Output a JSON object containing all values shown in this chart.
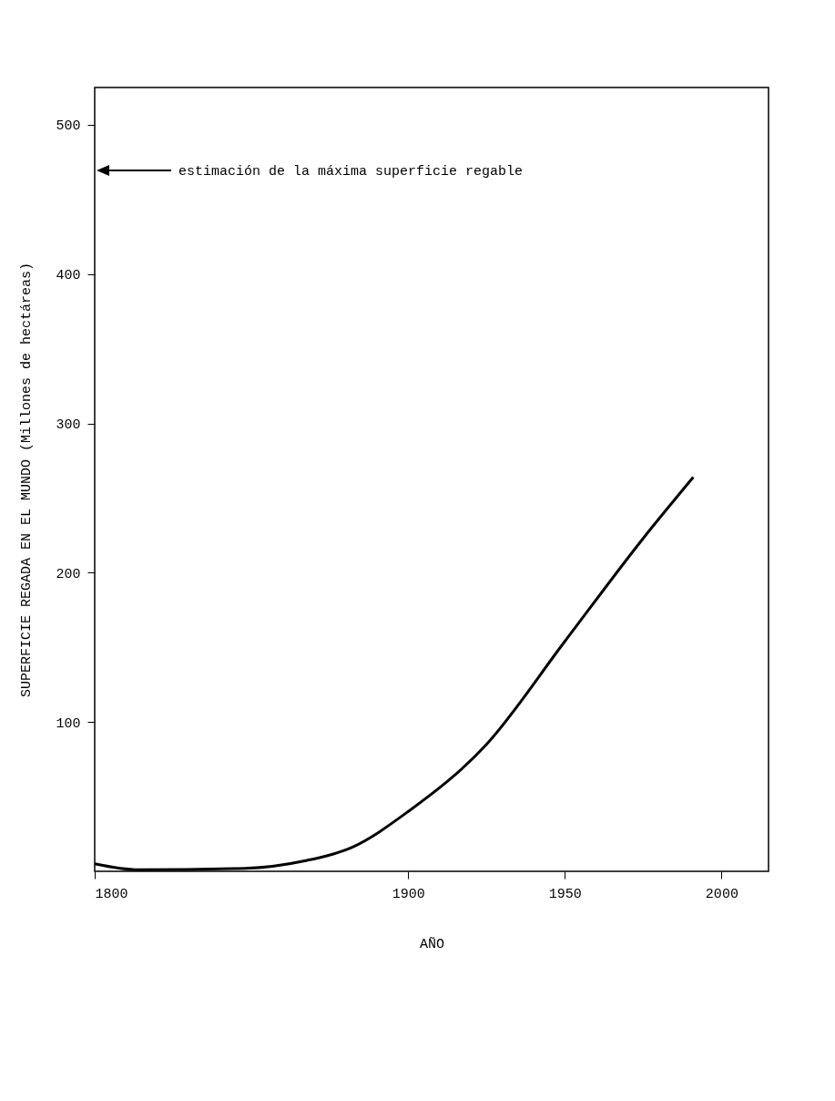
{
  "chart_data": {
    "type": "line",
    "xlabel": "AÑO",
    "ylabel": "SUPERFICIE REGADA EN EL MUNDO (Millones de hectáreas)",
    "x": [
      1800,
      1814,
      1848,
      1867,
      1882,
      1900,
      1925,
      1950,
      1975,
      1991
    ],
    "series": [
      {
        "color": "#000000",
        "values": [
          5,
          1,
          2,
          7,
          16,
          40,
          85,
          154,
          223,
          264
        ]
      }
    ],
    "xlim": [
      1800,
      2015
    ],
    "xticks": [
      1800,
      1900,
      1950,
      2000
    ],
    "ylim": [
      0,
      525
    ],
    "yticks": [
      100,
      200,
      300,
      400,
      500
    ],
    "annotations": [
      "estimación de la máxima superficie regable"
    ],
    "grid": false,
    "marker": "none",
    "line_style": "solid"
  }
}
